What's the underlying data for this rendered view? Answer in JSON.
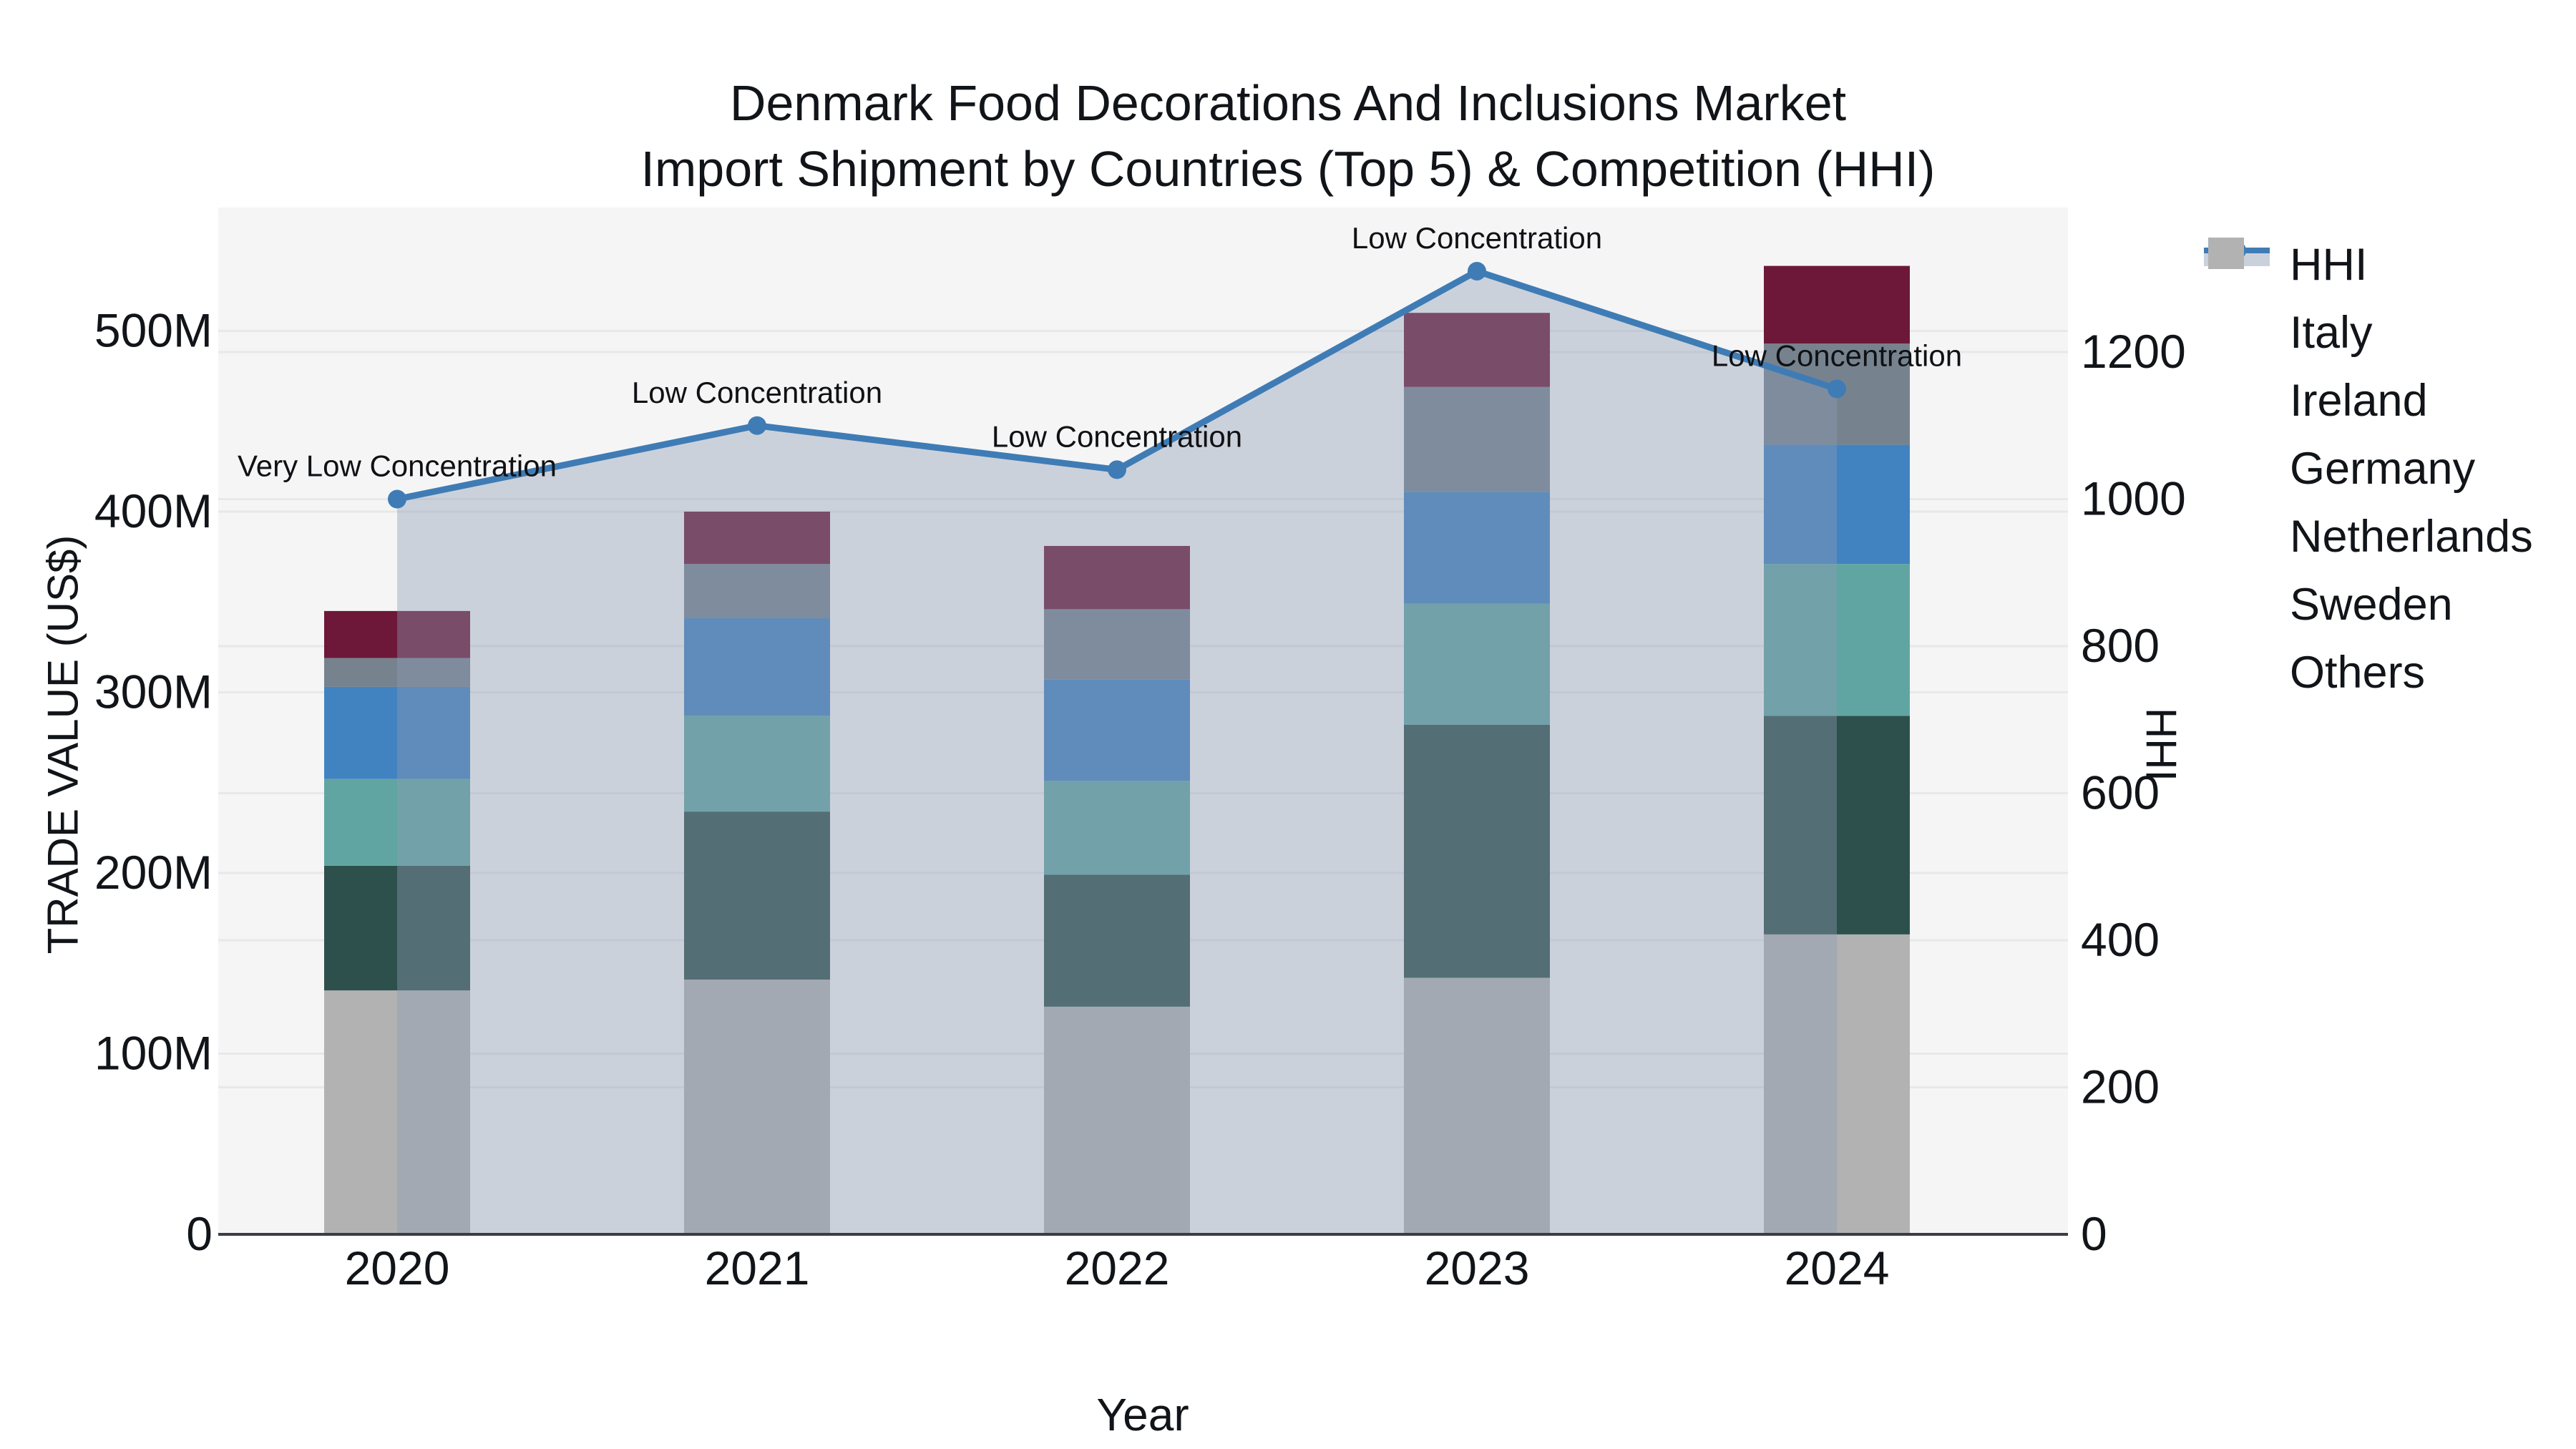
{
  "title": {
    "line1": "Denmark Food Decorations And Inclusions Market",
    "line2": "Import Shipment by Countries (Top 5) & Competition (HHI)"
  },
  "axes": {
    "x_title": "Year",
    "y_left_title": "TRADE VALUE (US$)",
    "y_right_title": "HHI",
    "y_left_tick_labels": [
      "0",
      "100M",
      "200M",
      "300M",
      "400M",
      "500M"
    ],
    "y_right_tick_labels": [
      "0",
      "200",
      "400",
      "600",
      "800",
      "1000",
      "1200"
    ]
  },
  "colors": {
    "hhi_line": "#3f7cb5",
    "area_fill": "rgba(140,155,180,0.40)",
    "plot_background": "#f5f5f6",
    "gridline": "#e7e8ea",
    "axis_line": "#3a3d41",
    "text": "#111418",
    "italy": "#6d1838",
    "ireland": "#76838f",
    "germany": "#4183c0",
    "netherlands": "#61a5a2",
    "sweden": "#2e504c",
    "others": "#b1b2b1"
  },
  "chart_data": {
    "type": "bar+line",
    "title": "Denmark Food Decorations And Inclusions Market Import Shipment by Countries (Top 5) & Competition (HHI)",
    "categories": [
      "2020",
      "2021",
      "2022",
      "2023",
      "2024"
    ],
    "xlabel": "Year",
    "ylabel_left": "TRADE VALUE (US$)",
    "ylabel_right": "HHI",
    "y_left_unit": "M US$",
    "y_left_ticks": [
      0,
      100,
      200,
      300,
      400,
      500
    ],
    "y_left_range": [
      0,
      568
    ],
    "y_right_ticks": [
      0,
      200,
      400,
      600,
      800,
      1000,
      1200
    ],
    "y_right_range": [
      0,
      1396
    ],
    "grid": "on",
    "legend_position": "right",
    "stack_order_bottom_to_top": [
      "Others",
      "Sweden",
      "Netherlands",
      "Germany",
      "Ireland",
      "Italy"
    ],
    "series": [
      {
        "name": "Italy",
        "color_key": "italy",
        "values": [
          26,
          29,
          35,
          41,
          43
        ]
      },
      {
        "name": "Ireland",
        "color_key": "ireland",
        "values": [
          16,
          30,
          39,
          58,
          56
        ]
      },
      {
        "name": "Germany",
        "color_key": "germany",
        "values": [
          51,
          54,
          56,
          62,
          66
        ]
      },
      {
        "name": "Netherlands",
        "color_key": "netherlands",
        "values": [
          48,
          53,
          52,
          67,
          84
        ]
      },
      {
        "name": "Sweden",
        "color_key": "sweden",
        "values": [
          69,
          93,
          73,
          140,
          121
        ]
      },
      {
        "name": "Others",
        "color_key": "others",
        "values": [
          135,
          141,
          126,
          142,
          166
        ]
      }
    ],
    "bar_totals": [
      345,
      400,
      381,
      510,
      536
    ],
    "line": {
      "name": "HHI",
      "values": [
        1000,
        1100,
        1040,
        1310,
        1150
      ],
      "color_key": "hhi_line",
      "area_fill_key": "area_fill",
      "fill_span": "from first to last category center"
    },
    "annotations": [
      {
        "category": "2020",
        "text": "Very Low Concentration"
      },
      {
        "category": "2021",
        "text": "Low Concentration"
      },
      {
        "category": "2022",
        "text": "Low Concentration"
      },
      {
        "category": "2023",
        "text": "Low Concentration"
      },
      {
        "category": "2024",
        "text": "Low Concentration"
      }
    ],
    "legend_order": [
      "HHI",
      "Italy",
      "Ireland",
      "Germany",
      "Netherlands",
      "Sweden",
      "Others"
    ]
  }
}
